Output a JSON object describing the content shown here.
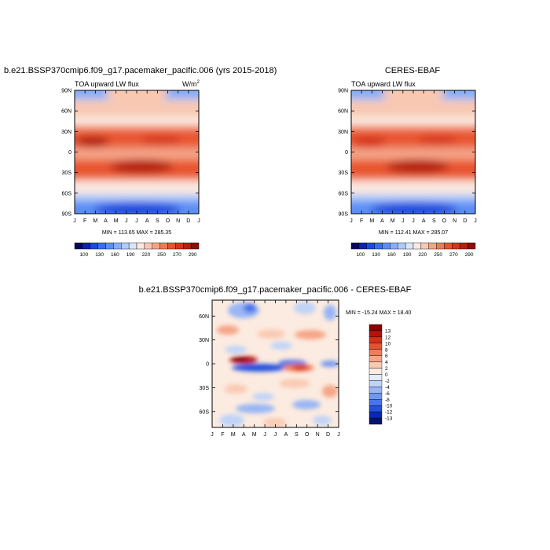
{
  "chart_data": [
    {
      "type": "heatmap",
      "title": "b.e21.BSSP370cmip6.f09_g17.pacemaker_pacific.006 (yrs 2015-2018)",
      "subtitle_left": "TOA upward LW flux",
      "units": "W/m",
      "units_sup": "2",
      "x_ticks": [
        "J",
        "F",
        "M",
        "A",
        "M",
        "J",
        "J",
        "A",
        "S",
        "O",
        "N",
        "D",
        "J"
      ],
      "y_ticks": [
        "90N",
        "60N",
        "30N",
        "0",
        "30S",
        "60S",
        "90S"
      ],
      "ylim": [
        -90,
        90
      ],
      "stats": "MIN = 113.65 MAX = 285.35",
      "colorbar": {
        "labels": [
          "100",
          "130",
          "160",
          "190",
          "220",
          "250",
          "270",
          "290"
        ],
        "colors": [
          "#08065e",
          "#0c23b0",
          "#1a4be0",
          "#3a6ef2",
          "#5b8ef5",
          "#86aef7",
          "#b0cbf8",
          "#d9e6fa",
          "#fbe8de",
          "#f8c8b2",
          "#f4a384",
          "#ef7a56",
          "#e8522f",
          "#d5351a",
          "#b52010",
          "#8a0f08"
        ]
      }
    },
    {
      "type": "heatmap",
      "title": "CERES-EBAF",
      "subtitle_left": "TOA upward LW flux",
      "x_ticks": [
        "J",
        "F",
        "M",
        "A",
        "M",
        "J",
        "J",
        "A",
        "S",
        "O",
        "N",
        "D",
        "J"
      ],
      "y_ticks": [
        "90N",
        "60N",
        "30N",
        "0",
        "30S",
        "60S",
        "90S"
      ],
      "ylim": [
        -90,
        90
      ],
      "stats": "MIN = 112.41 MAX = 285.07",
      "colorbar": {
        "labels": [
          "100",
          "130",
          "160",
          "190",
          "220",
          "250",
          "270",
          "290"
        ],
        "colors": [
          "#08065e",
          "#0c23b0",
          "#1a4be0",
          "#3a6ef2",
          "#5b8ef5",
          "#86aef7",
          "#b0cbf8",
          "#d9e6fa",
          "#fbe8de",
          "#f8c8b2",
          "#f4a384",
          "#ef7a56",
          "#e8522f",
          "#d5351a",
          "#b52010",
          "#8a0f08"
        ]
      }
    },
    {
      "type": "heatmap",
      "title": "b.e21.BSSP370cmip6.f09_g17.pacemaker_pacific.006 - CERES-EBAF",
      "x_ticks": [
        "J",
        "F",
        "M",
        "A",
        "M",
        "J",
        "J",
        "A",
        "S",
        "O",
        "N",
        "D",
        "J"
      ],
      "y_ticks": [
        "60N",
        "30N",
        "0",
        "30S",
        "60S"
      ],
      "ylim": [
        -80,
        80
      ],
      "stats": "MIN = -15.24 MAX =  18.40",
      "colorbar": {
        "labels": [
          "13",
          "12",
          "10",
          "8",
          "6",
          "4",
          "2",
          "0",
          "-2",
          "-4",
          "-6",
          "-8",
          "-10",
          "-12",
          "-13"
        ],
        "colors": [
          "#8b0000",
          "#b3140a",
          "#d23019",
          "#e45331",
          "#ef7c59",
          "#f5a587",
          "#f9cbb4",
          "#fcebe0",
          "#e2ecfb",
          "#c0d4f8",
          "#98b6f4",
          "#7097f0",
          "#4874ea",
          "#2350dd",
          "#0a28b4",
          "#061270"
        ]
      }
    }
  ]
}
